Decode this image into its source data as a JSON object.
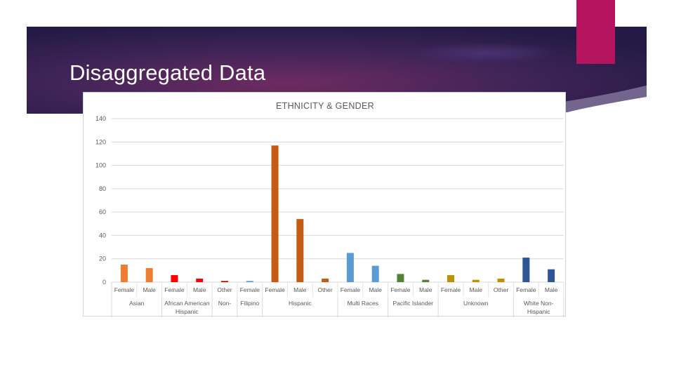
{
  "slide": {
    "title": "Disaggregated Data",
    "banner_colors": [
      "#2a1d4d",
      "#6a2a63",
      "#3a2a5e"
    ],
    "accent_color": "#b5145f"
  },
  "chart_data": {
    "type": "bar",
    "title": "ETHNICITY & GENDER",
    "xlabel": "",
    "ylabel": "",
    "ylim": [
      0,
      140
    ],
    "yticks": [
      0,
      20,
      40,
      60,
      80,
      100,
      120,
      140
    ],
    "grid": true,
    "legend": "none",
    "bars": [
      {
        "group": "Asian",
        "label": "Female",
        "value": 15,
        "color": "#ed7d31"
      },
      {
        "group": "Asian",
        "label": "Male",
        "value": 12,
        "color": "#ed7d31"
      },
      {
        "group": "African American",
        "label": "Female",
        "value": 6,
        "color": "#ff0000"
      },
      {
        "group": "African American",
        "label": "Male",
        "value": 3,
        "color": "#ff0000"
      },
      {
        "group": "Non-",
        "label": "Other",
        "value": 1,
        "color": "#c00000"
      },
      {
        "group": "Filipino",
        "label": "Female",
        "value": 1,
        "color": "#5b9bd5"
      },
      {
        "group": "Hispanic",
        "label": "Female",
        "value": 117,
        "color": "#c55a11"
      },
      {
        "group": "Hispanic",
        "label": "Male",
        "value": 54,
        "color": "#c55a11"
      },
      {
        "group": "Hispanic",
        "label": "Other",
        "value": 3,
        "color": "#c55a11"
      },
      {
        "group": "Multi Races",
        "label": "Female",
        "value": 25,
        "color": "#5b9bd5"
      },
      {
        "group": "Multi Races",
        "label": "Male",
        "value": 14,
        "color": "#5b9bd5"
      },
      {
        "group": "Pacific Islander",
        "label": "Female",
        "value": 7,
        "color": "#548235"
      },
      {
        "group": "Pacific Islander",
        "label": "Male",
        "value": 2,
        "color": "#548235"
      },
      {
        "group": "Unknown",
        "label": "Female",
        "value": 6,
        "color": "#bf9000"
      },
      {
        "group": "Unknown",
        "label": "Male",
        "value": 2,
        "color": "#bf9000"
      },
      {
        "group": "Unknown",
        "label": "Other",
        "value": 3,
        "color": "#bf9000"
      },
      {
        "group": "White Non-Hispanic",
        "label": "Female",
        "value": 21,
        "color": "#2f5597"
      },
      {
        "group": "White Non-Hispanic",
        "label": "Male",
        "value": 11,
        "color": "#2f5597"
      }
    ],
    "groups": [
      {
        "lines": [
          "Asian"
        ],
        "span": [
          0,
          2
        ]
      },
      {
        "lines": [
          "African American",
          "Hispanic"
        ],
        "span": [
          2,
          4
        ]
      },
      {
        "lines": [
          "Non-"
        ],
        "span": [
          4,
          5
        ]
      },
      {
        "lines": [
          "Filipino"
        ],
        "span": [
          5,
          6
        ]
      },
      {
        "lines": [
          "Hispanic"
        ],
        "span": [
          6,
          9
        ]
      },
      {
        "lines": [
          "Multi Races"
        ],
        "span": [
          9,
          11
        ]
      },
      {
        "lines": [
          "Pacific Islander"
        ],
        "span": [
          11,
          13
        ]
      },
      {
        "lines": [
          "Unknown"
        ],
        "span": [
          13,
          16
        ]
      },
      {
        "lines": [
          "White Non-",
          "Hispanic"
        ],
        "span": [
          16,
          18
        ]
      }
    ]
  }
}
